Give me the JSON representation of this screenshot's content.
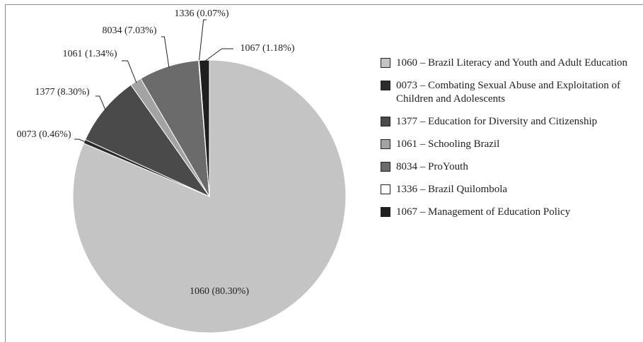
{
  "chart_data": {
    "type": "pie",
    "categories": [
      "1060 – Brazil Literacy and Youth and Adult Education",
      "0073 – Combating Sexual Abuse and Exploitation of Children and Adolescents",
      "1377 – Education for Diversity and Citizenship",
      "1061 – Schooling Brazil",
      "8034 – ProYouth",
      "1336 – Brazil Quilombola",
      "1067 – Management of Education Policy"
    ],
    "values": [
      80.3,
      0.46,
      8.3,
      1.34,
      7.03,
      0.07,
      1.18
    ],
    "value_labels": [
      "1060 (80.30%)",
      "0073 (0.46%)",
      "1377 (8.30%)",
      "1061 (1.34%)",
      "8034 (7.03%)",
      "1336 (0.07%)",
      "1067 (1.18%)"
    ],
    "colors": [
      "#c4c4c4",
      "#2b2b2b",
      "#4a4a4a",
      "#a3a3a3",
      "#6b6b6b",
      "#ffffff",
      "#1f1f1f"
    ]
  }
}
